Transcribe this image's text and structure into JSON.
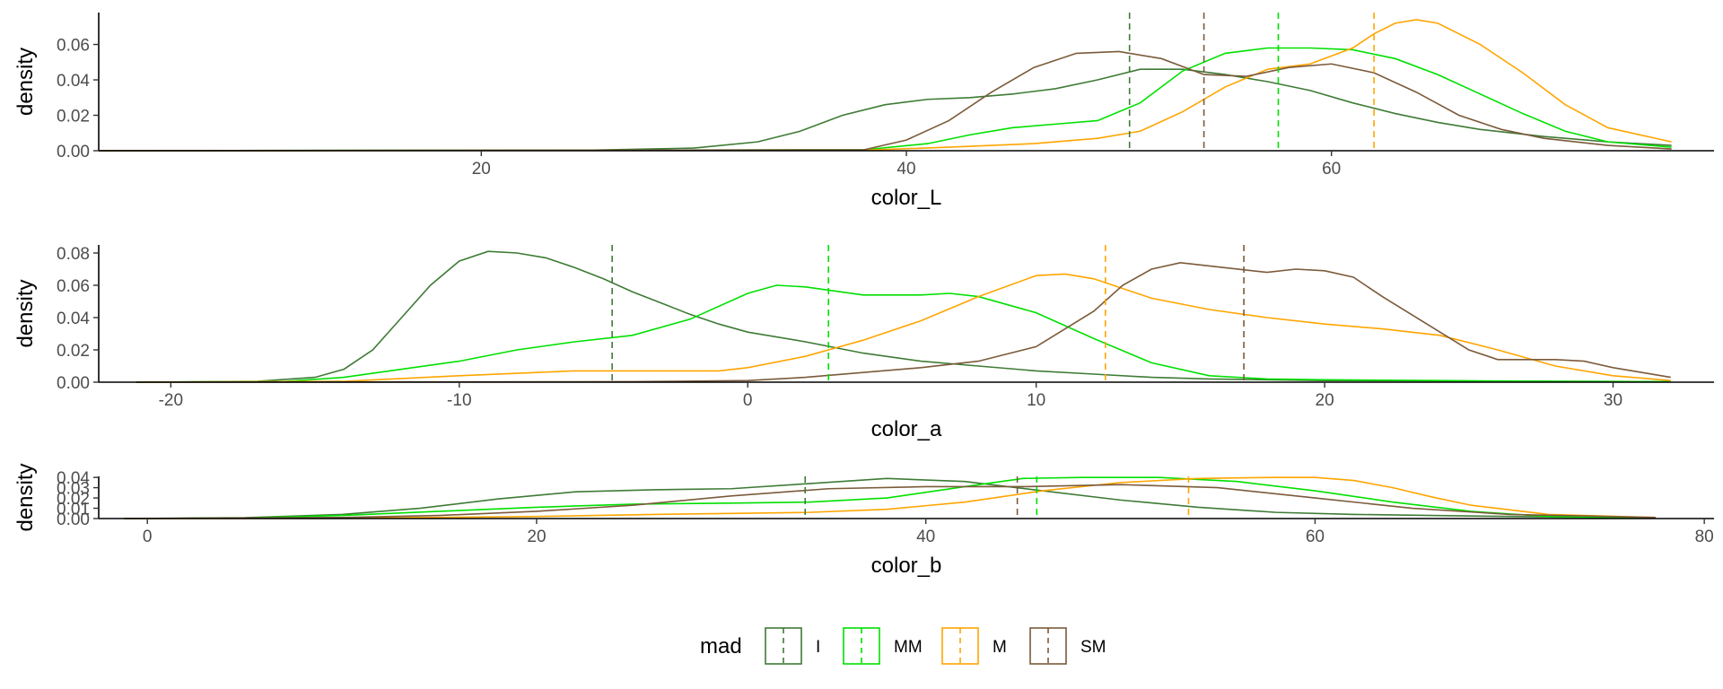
{
  "chart_data": {
    "type": "line",
    "legend": {
      "title": "mad",
      "placement": "bottom",
      "entries": [
        {
          "key": "I",
          "label": "I",
          "color": "#3e7b35"
        },
        {
          "key": "MM",
          "label": "MM",
          "color": "#00e000"
        },
        {
          "key": "M",
          "label": "M",
          "color": "#ffa500"
        },
        {
          "key": "SM",
          "label": "SM",
          "color": "#7b5a3a"
        }
      ]
    },
    "panels": [
      {
        "id": "color_L",
        "xlabel": "color_L",
        "ylabel": "density",
        "xlim": [
          2,
          78
        ],
        "ylim": [
          0,
          0.078
        ],
        "xticks": [
          20,
          40,
          60
        ],
        "xtick_labels": [
          "20",
          "40",
          "60"
        ],
        "yticks": [
          0,
          0.02,
          0.04,
          0.06
        ],
        "ytick_labels": [
          "0.00",
          "0.02",
          "0.04",
          "0.06"
        ],
        "grid": false,
        "series": [
          {
            "key": "I",
            "mean": 50.5,
            "x": [
              2,
              25,
              30,
              33,
              35,
              37,
              39,
              41,
              43,
              45,
              47,
              49,
              51,
              53,
              55,
              57,
              59,
              61,
              63,
              65,
              67,
              70,
              73,
              76
            ],
            "y": [
              0,
              0.0003,
              0.0015,
              0.005,
              0.011,
              0.02,
              0.026,
              0.029,
              0.03,
              0.032,
              0.035,
              0.04,
              0.046,
              0.046,
              0.043,
              0.039,
              0.034,
              0.027,
              0.021,
              0.016,
              0.012,
              0.008,
              0.005,
              0.003
            ]
          },
          {
            "key": "MM",
            "mean": 57.5,
            "x": [
              2,
              38,
              41,
              43,
              45,
              47,
              49,
              51,
              53,
              55,
              57,
              59,
              61,
              63,
              65,
              67,
              69,
              71,
              73,
              76
            ],
            "y": [
              0,
              0.0005,
              0.004,
              0.009,
              0.013,
              0.015,
              0.017,
              0.027,
              0.045,
              0.055,
              0.058,
              0.058,
              0.057,
              0.052,
              0.043,
              0.032,
              0.021,
              0.011,
              0.005,
              0.002
            ]
          },
          {
            "key": "M",
            "mean": 62,
            "x": [
              2,
              38,
              42,
              46,
              49,
              51,
              53,
              55,
              57,
              59,
              61,
              62,
              63,
              64,
              65,
              67,
              69,
              71,
              73,
              76
            ],
            "y": [
              0,
              0.0003,
              0.002,
              0.004,
              0.007,
              0.011,
              0.022,
              0.036,
              0.046,
              0.049,
              0.058,
              0.066,
              0.072,
              0.074,
              0.072,
              0.06,
              0.044,
              0.026,
              0.013,
              0.005
            ]
          },
          {
            "key": "SM",
            "mean": 54,
            "x": [
              2,
              38,
              40,
              42,
              44,
              46,
              48,
              50,
              52,
              54,
              56,
              58,
              60,
              62,
              64,
              66,
              68,
              70,
              73,
              76
            ],
            "y": [
              0,
              0.0005,
              0.006,
              0.017,
              0.033,
              0.047,
              0.055,
              0.056,
              0.052,
              0.043,
              0.042,
              0.047,
              0.049,
              0.044,
              0.033,
              0.02,
              0.012,
              0.007,
              0.003,
              0.001
            ]
          }
        ]
      },
      {
        "id": "color_a",
        "xlabel": "color_a",
        "ylabel": "density",
        "xlim": [
          -22.5,
          33.5
        ],
        "ylim": [
          0,
          0.085
        ],
        "xticks": [
          -20,
          -10,
          0,
          10,
          20,
          30
        ],
        "xtick_labels": [
          "-20",
          "-10",
          "0",
          "10",
          "20",
          "30"
        ],
        "yticks": [
          0,
          0.02,
          0.04,
          0.06,
          0.08
        ],
        "ytick_labels": [
          "0.00",
          "0.02",
          "0.04",
          "0.06",
          "0.08"
        ],
        "grid": false,
        "series": [
          {
            "key": "I",
            "mean": -4.7,
            "x": [
              -21.2,
              -17,
              -15,
              -14,
              -13,
              -12,
              -11,
              -10,
              -9,
              -8,
              -7,
              -6,
              -5,
              -4,
              -3,
              -2,
              -1,
              0,
              2,
              4,
              6,
              8,
              10,
              12,
              14,
              16,
              18,
              20,
              24,
              28,
              32
            ],
            "y": [
              0,
              0.0005,
              0.003,
              0.008,
              0.02,
              0.04,
              0.06,
              0.075,
              0.081,
              0.08,
              0.077,
              0.071,
              0.064,
              0.056,
              0.049,
              0.042,
              0.036,
              0.031,
              0.025,
              0.018,
              0.013,
              0.01,
              0.007,
              0.005,
              0.003,
              0.002,
              0.0015,
              0.001,
              0.0008,
              0.0005,
              0.0003
            ]
          },
          {
            "key": "MM",
            "mean": 2.8,
            "x": [
              -21.2,
              -16,
              -14,
              -12,
              -10,
              -8,
              -6,
              -4,
              -2,
              0,
              1,
              2,
              4,
              6,
              7,
              8,
              10,
              12,
              14,
              16,
              18,
              20,
              24,
              28,
              32
            ],
            "y": [
              0,
              0.0005,
              0.003,
              0.008,
              0.013,
              0.02,
              0.025,
              0.029,
              0.039,
              0.055,
              0.06,
              0.059,
              0.054,
              0.054,
              0.055,
              0.053,
              0.043,
              0.027,
              0.012,
              0.004,
              0.002,
              0.0015,
              0.001,
              0.0005,
              0.0003
            ]
          },
          {
            "key": "M",
            "mean": 12.4,
            "x": [
              -21.2,
              -14,
              -10,
              -6,
              -3,
              -1,
              0,
              2,
              4,
              6,
              8,
              10,
              11,
              12,
              14,
              16,
              18,
              20,
              22,
              24,
              26,
              28,
              30,
              32
            ],
            "y": [
              0,
              0.0005,
              0.004,
              0.007,
              0.007,
              0.007,
              0.009,
              0.016,
              0.026,
              0.038,
              0.053,
              0.066,
              0.067,
              0.064,
              0.052,
              0.045,
              0.04,
              0.036,
              0.033,
              0.029,
              0.02,
              0.01,
              0.004,
              0.001
            ]
          },
          {
            "key": "SM",
            "mean": 17.2,
            "x": [
              -21.2,
              -4,
              0,
              2,
              4,
              6,
              8,
              10,
              12,
              13,
              14,
              15,
              16,
              18,
              19,
              20,
              21,
              22,
              24,
              25,
              26,
              28,
              29,
              30,
              32
            ],
            "y": [
              0,
              0.0003,
              0.001,
              0.003,
              0.006,
              0.009,
              0.013,
              0.022,
              0.044,
              0.06,
              0.07,
              0.074,
              0.072,
              0.068,
              0.07,
              0.069,
              0.065,
              0.053,
              0.031,
              0.02,
              0.014,
              0.014,
              0.013,
              0.009,
              0.003
            ]
          }
        ]
      },
      {
        "id": "color_b",
        "xlabel": "color_b",
        "ylabel": "density",
        "xlim": [
          -2.5,
          80.5
        ],
        "ylim": [
          0,
          0.041
        ],
        "xticks": [
          0,
          20,
          40,
          60,
          80
        ],
        "xtick_labels": [
          "0",
          "20",
          "40",
          "60",
          "80"
        ],
        "yticks": [
          0,
          0.01,
          0.02,
          0.03,
          0.04
        ],
        "ytick_labels": [
          "0.00",
          "0.01",
          "0.02",
          "0.03",
          "0.04"
        ],
        "grid": false,
        "series": [
          {
            "key": "I",
            "mean": 33.8,
            "x": [
              -1.2,
              5,
              10,
              14,
              18,
              22,
              26,
              30,
              34,
              38,
              42,
              46,
              50,
              54,
              58,
              62,
              66,
              70,
              77.5
            ],
            "y": [
              0,
              0.0008,
              0.004,
              0.01,
              0.019,
              0.026,
              0.028,
              0.029,
              0.034,
              0.039,
              0.036,
              0.027,
              0.018,
              0.011,
              0.006,
              0.004,
              0.003,
              0.002,
              0.0005
            ]
          },
          {
            "key": "MM",
            "mean": 45.7,
            "x": [
              -1.2,
              5,
              10,
              15,
              20,
              25,
              30,
              34,
              38,
              42,
              45,
              48,
              52,
              56,
              60,
              64,
              68,
              72,
              77.5
            ],
            "y": [
              0,
              0.0005,
              0.003,
              0.007,
              0.011,
              0.014,
              0.015,
              0.016,
              0.02,
              0.031,
              0.039,
              0.04,
              0.04,
              0.036,
              0.027,
              0.016,
              0.007,
              0.002,
              0.0005
            ]
          },
          {
            "key": "M",
            "mean": 53.5,
            "x": [
              -1.2,
              10,
              20,
              26,
              30,
              34,
              38,
              42,
              46,
              50,
              54,
              58,
              60,
              62,
              64,
              66,
              68,
              72,
              77.5
            ],
            "y": [
              0,
              0.0003,
              0.002,
              0.004,
              0.005,
              0.006,
              0.009,
              0.016,
              0.027,
              0.035,
              0.039,
              0.04,
              0.04,
              0.037,
              0.03,
              0.021,
              0.013,
              0.004,
              0.001
            ]
          },
          {
            "key": "SM",
            "mean": 44.7,
            "x": [
              -1.2,
              10,
              15,
              20,
              25,
              30,
              35,
              40,
              45,
              50,
              55,
              60,
              65,
              70,
              77.5
            ],
            "y": [
              0,
              0.001,
              0.003,
              0.007,
              0.013,
              0.022,
              0.029,
              0.031,
              0.031,
              0.033,
              0.03,
              0.02,
              0.01,
              0.004,
              0.001
            ]
          }
        ]
      }
    ]
  }
}
